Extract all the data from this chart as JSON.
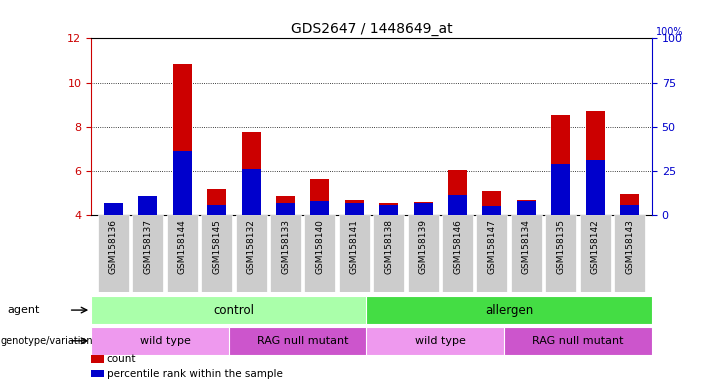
{
  "title": "GDS2647 / 1448649_at",
  "samples": [
    "GSM158136",
    "GSM158137",
    "GSM158144",
    "GSM158145",
    "GSM158132",
    "GSM158133",
    "GSM158140",
    "GSM158141",
    "GSM158138",
    "GSM158139",
    "GSM158146",
    "GSM158147",
    "GSM158134",
    "GSM158135",
    "GSM158142",
    "GSM158143"
  ],
  "count_values": [
    4.2,
    4.65,
    10.85,
    5.2,
    7.75,
    4.85,
    5.65,
    4.7,
    4.55,
    4.6,
    6.05,
    5.1,
    4.7,
    8.55,
    8.7,
    4.95
  ],
  "percentile_values": [
    4.55,
    4.85,
    6.9,
    4.45,
    6.1,
    4.55,
    4.65,
    4.55,
    4.45,
    4.55,
    4.9,
    4.4,
    4.65,
    6.3,
    6.5,
    4.45
  ],
  "ylim": [
    4.0,
    12.0
  ],
  "yticks_left": [
    4,
    6,
    8,
    10,
    12
  ],
  "yticks_right": [
    0,
    25,
    50,
    75,
    100
  ],
  "count_color": "#cc0000",
  "percentile_color": "#0000cc",
  "bar_width": 0.55,
  "agent_labels": [
    {
      "label": "control",
      "start": 0,
      "end": 8,
      "color": "#aaffaa"
    },
    {
      "label": "allergen",
      "start": 8,
      "end": 16,
      "color": "#44dd44"
    }
  ],
  "genotype_labels": [
    {
      "label": "wild type",
      "start": 0,
      "end": 4,
      "color": "#ee99ee"
    },
    {
      "label": "RAG null mutant",
      "start": 4,
      "end": 8,
      "color": "#cc55cc"
    },
    {
      "label": "wild type",
      "start": 8,
      "end": 12,
      "color": "#ee99ee"
    },
    {
      "label": "RAG null mutant",
      "start": 12,
      "end": 16,
      "color": "#cc55cc"
    }
  ],
  "legend_items": [
    {
      "label": "count",
      "color": "#cc0000"
    },
    {
      "label": "percentile rank within the sample",
      "color": "#0000cc"
    }
  ],
  "left_axis_color": "#cc0000",
  "right_axis_color": "#0000cc",
  "tick_bg_color": "#cccccc",
  "grid_color": "#000000"
}
